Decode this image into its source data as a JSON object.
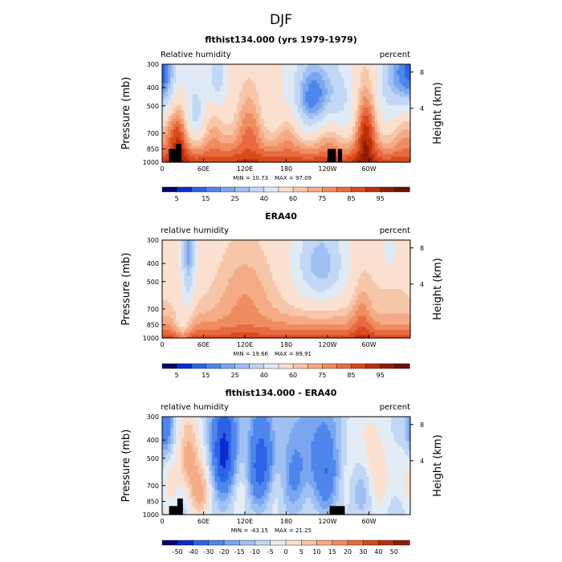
{
  "figure": {
    "title": "DJF",
    "x_ticks": [
      "0",
      "60E",
      "120E",
      "180",
      "120W",
      "60W"
    ],
    "y_ticks": [
      "300",
      "400",
      "500",
      "700",
      "850",
      "1000"
    ],
    "y_ticks_right": [
      "8",
      "4"
    ],
    "ylabel_left": "Pressure (mb)",
    "ylabel_right": "Height (km)"
  },
  "panels": [
    {
      "title": "flthist134.000 (yrs 1979-1979)",
      "left_label": "Relative humidity",
      "right_label": "percent",
      "min_text": "MIN =   10.73",
      "max_text": "MAX =   97.09",
      "colorbar_labels": [
        "5",
        "15",
        "25",
        "40",
        "60",
        "75",
        "85",
        "95"
      ]
    },
    {
      "title": "ERA40",
      "left_label": "relative humidity",
      "right_label": "percent",
      "min_text": "MIN =   19.66",
      "max_text": "MAX =   89.91",
      "colorbar_labels": [
        "5",
        "15",
        "25",
        "40",
        "60",
        "75",
        "85",
        "95"
      ]
    },
    {
      "title": "flthist134.000 - ERA40",
      "left_label": "relative humidity",
      "right_label": "percent",
      "min_text": "MIN = -43.15",
      "max_text": "MAX =   21.25",
      "colorbar_labels": [
        "-50",
        "-40",
        "-30",
        "-20",
        "-15",
        "-10",
        "-5",
        "0",
        "5",
        "10",
        "15",
        "20",
        "30",
        "40",
        "50"
      ]
    }
  ],
  "chart_data": [
    {
      "type": "heatmap",
      "title": "flthist134.000 (yrs 1979-1979)",
      "xlabel": "",
      "ylabel": "Pressure (mb)",
      "xlim": [
        0,
        360
      ],
      "ylim": [
        1000,
        300
      ],
      "x_unit": "degrees longitude",
      "y_scale": "log",
      "color_levels": [
        5,
        10,
        15,
        20,
        25,
        30,
        40,
        50,
        60,
        65,
        70,
        75,
        80,
        85,
        90,
        95
      ],
      "value_range": [
        10.73,
        97.09
      ],
      "colormap": "blue-white-red"
    },
    {
      "type": "heatmap",
      "title": "ERA40",
      "xlabel": "",
      "ylabel": "Pressure (mb)",
      "xlim": [
        0,
        360
      ],
      "ylim": [
        1000,
        300
      ],
      "x_unit": "degrees longitude",
      "y_scale": "log",
      "color_levels": [
        5,
        10,
        15,
        20,
        25,
        30,
        40,
        50,
        60,
        65,
        70,
        75,
        80,
        85,
        90,
        95
      ],
      "value_range": [
        19.66,
        89.91
      ],
      "colormap": "blue-white-red"
    },
    {
      "type": "heatmap",
      "title": "flthist134.000 - ERA40",
      "xlabel": "",
      "ylabel": "Pressure (mb)",
      "xlim": [
        0,
        360
      ],
      "ylim": [
        1000,
        300
      ],
      "x_unit": "degrees longitude",
      "y_scale": "log",
      "color_levels": [
        -50,
        -40,
        -30,
        -20,
        -15,
        -10,
        -5,
        0,
        5,
        10,
        15,
        20,
        30,
        40,
        50
      ],
      "value_range": [
        -43.15,
        21.25
      ],
      "colormap": "blue-white-red"
    }
  ]
}
